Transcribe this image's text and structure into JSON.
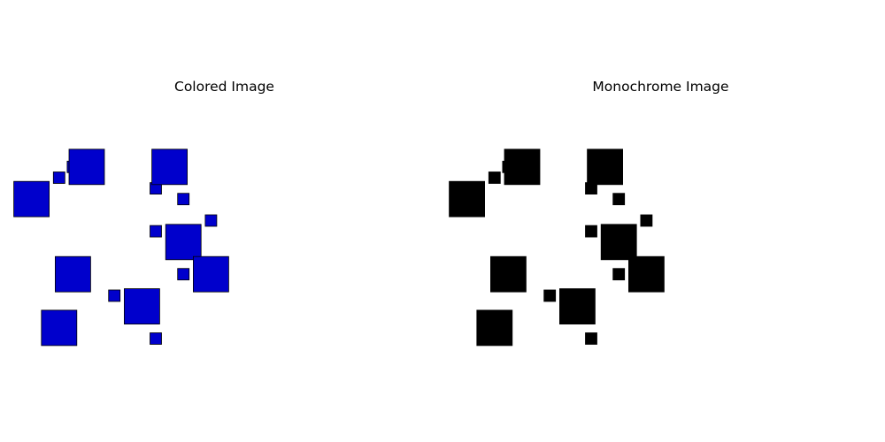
{
  "colors": {
    "background": "#ffffff",
    "colored_fill": "#0000cc",
    "mono_fill": "#000000",
    "edge": "#000000"
  },
  "chart_data": [
    {
      "type": "scatter",
      "title": "Colored Image",
      "marker": "square",
      "color": "#0000cc",
      "xlim": [
        0,
        15
      ],
      "ylim": [
        0,
        11
      ],
      "axes_visible": false,
      "grid": false,
      "points": [
        {
          "x": 0.5,
          "y": 6.5,
          "size": "large"
        },
        {
          "x": 1.5,
          "y": 7.5,
          "size": "small"
        },
        {
          "x": 1.5,
          "y": 0.5,
          "size": "large"
        },
        {
          "x": 2.0,
          "y": 8.0,
          "size": "small"
        },
        {
          "x": 2.5,
          "y": 8.0,
          "size": "large"
        },
        {
          "x": 2.0,
          "y": 3.0,
          "size": "large"
        },
        {
          "x": 3.5,
          "y": 2.0,
          "size": "small"
        },
        {
          "x": 4.5,
          "y": 1.5,
          "size": "large"
        },
        {
          "x": 5.0,
          "y": 0.0,
          "size": "small"
        },
        {
          "x": 5.0,
          "y": 7.0,
          "size": "small"
        },
        {
          "x": 5.5,
          "y": 8.0,
          "size": "large"
        },
        {
          "x": 5.0,
          "y": 5.0,
          "size": "small"
        },
        {
          "x": 6.0,
          "y": 6.5,
          "size": "small"
        },
        {
          "x": 6.0,
          "y": 4.5,
          "size": "large"
        },
        {
          "x": 6.0,
          "y": 3.0,
          "size": "small"
        },
        {
          "x": 7.0,
          "y": 5.5,
          "size": "small"
        },
        {
          "x": 7.0,
          "y": 3.0,
          "size": "large"
        }
      ]
    },
    {
      "type": "scatter",
      "title": "Monochrome Image",
      "marker": "square",
      "color": "#000000",
      "xlim": [
        0,
        15
      ],
      "ylim": [
        0,
        11
      ],
      "axes_visible": false,
      "grid": false,
      "points": [
        {
          "x": 0.5,
          "y": 6.5,
          "size": "large"
        },
        {
          "x": 1.5,
          "y": 7.5,
          "size": "small"
        },
        {
          "x": 1.5,
          "y": 0.5,
          "size": "large"
        },
        {
          "x": 2.0,
          "y": 8.0,
          "size": "small"
        },
        {
          "x": 2.5,
          "y": 8.0,
          "size": "large"
        },
        {
          "x": 2.0,
          "y": 3.0,
          "size": "large"
        },
        {
          "x": 3.5,
          "y": 2.0,
          "size": "small"
        },
        {
          "x": 4.5,
          "y": 1.5,
          "size": "large"
        },
        {
          "x": 5.0,
          "y": 0.0,
          "size": "small"
        },
        {
          "x": 5.0,
          "y": 7.0,
          "size": "small"
        },
        {
          "x": 5.5,
          "y": 8.0,
          "size": "large"
        },
        {
          "x": 5.0,
          "y": 5.0,
          "size": "small"
        },
        {
          "x": 6.0,
          "y": 6.5,
          "size": "small"
        },
        {
          "x": 6.0,
          "y": 4.5,
          "size": "large"
        },
        {
          "x": 6.0,
          "y": 3.0,
          "size": "small"
        },
        {
          "x": 7.0,
          "y": 5.5,
          "size": "small"
        },
        {
          "x": 7.0,
          "y": 3.0,
          "size": "large"
        }
      ]
    }
  ]
}
